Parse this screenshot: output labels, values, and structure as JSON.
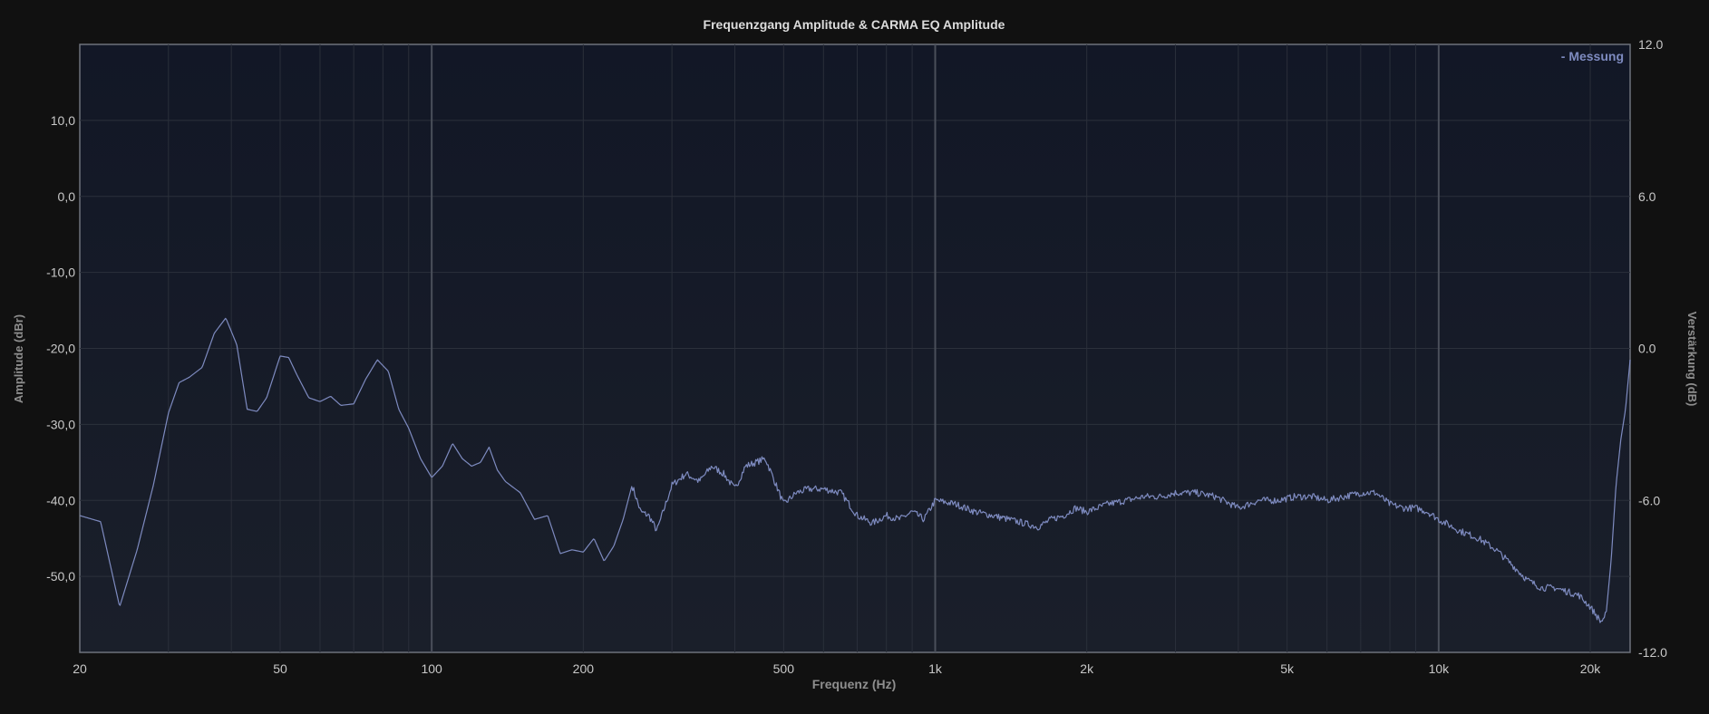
{
  "chart_data": {
    "type": "line",
    "title": "Frequenzgang Amplitude & CARMA EQ Amplitude",
    "xlabel": "Frequenz (Hz)",
    "ylabel": "Amplitude (dBr)",
    "y2label": "Verstärkung (dB)",
    "xscale": "log",
    "xlim": [
      20,
      24000
    ],
    "ylim": [
      -60,
      20
    ],
    "y2lim": [
      -12,
      12
    ],
    "grid": true,
    "legend_position": "top-right",
    "x_ticks": [
      {
        "value": 20,
        "label": "20"
      },
      {
        "value": 50,
        "label": "50"
      },
      {
        "value": 100,
        "label": "100"
      },
      {
        "value": 200,
        "label": "200"
      },
      {
        "value": 500,
        "label": "500"
      },
      {
        "value": 1000,
        "label": "1k"
      },
      {
        "value": 2000,
        "label": "2k"
      },
      {
        "value": 5000,
        "label": "5k"
      },
      {
        "value": 10000,
        "label": "10k"
      },
      {
        "value": 20000,
        "label": "20k"
      }
    ],
    "y_ticks": [
      {
        "value": 10,
        "label": "10,0"
      },
      {
        "value": 0,
        "label": "0,0"
      },
      {
        "value": -10,
        "label": "-10,0"
      },
      {
        "value": -20,
        "label": "-20,0"
      },
      {
        "value": -30,
        "label": "-30,0"
      },
      {
        "value": -40,
        "label": "-40,0"
      },
      {
        "value": -50,
        "label": "-50,0"
      }
    ],
    "y2_ticks": [
      {
        "value": 12,
        "label": "12.0"
      },
      {
        "value": 6,
        "label": "6.0"
      },
      {
        "value": 0,
        "label": "0.0"
      },
      {
        "value": -6,
        "label": "-6.0"
      },
      {
        "value": -12,
        "label": "-12.0"
      }
    ],
    "series": [
      {
        "name": "Messung",
        "legend_label": "- Messung",
        "color": "#7e8bc0",
        "x": [
          20,
          22,
          24,
          26,
          28,
          30,
          31.5,
          33,
          35,
          37,
          39,
          41,
          43,
          45,
          47,
          50,
          52,
          54,
          57,
          60,
          63,
          66,
          70,
          74,
          78,
          82,
          86,
          90,
          95,
          100,
          105,
          110,
          115,
          120,
          125,
          130,
          135,
          140,
          150,
          160,
          170,
          180,
          190,
          200,
          210,
          220,
          230,
          240,
          250,
          260,
          270,
          280,
          300,
          320,
          340,
          360,
          380,
          400,
          420,
          440,
          460,
          480,
          500,
          530,
          560,
          600,
          650,
          700,
          750,
          800,
          850,
          900,
          950,
          1000,
          1100,
          1200,
          1300,
          1400,
          1500,
          1600,
          1700,
          1800,
          1900,
          2000,
          2200,
          2400,
          2600,
          2800,
          3000,
          3300,
          3600,
          4000,
          4400,
          4800,
          5200,
          5600,
          6000,
          6500,
          7000,
          7500,
          8000,
          8500,
          9000,
          9500,
          10000,
          11000,
          12000,
          13000,
          14000,
          15000,
          16000,
          17000,
          18000,
          19000,
          20000,
          21000,
          21500,
          22000,
          22500,
          23000,
          23500,
          24000
        ],
        "values": [
          -42.0,
          -42.8,
          -54.0,
          -46.5,
          -38.0,
          -28.5,
          -24.5,
          -23.8,
          -22.5,
          -18.0,
          -16.0,
          -19.5,
          -28.0,
          -28.3,
          -26.5,
          -21.0,
          -21.2,
          -23.5,
          -26.5,
          -27.0,
          -26.3,
          -27.5,
          -27.3,
          -24.0,
          -21.5,
          -23.0,
          -28.0,
          -30.5,
          -34.5,
          -37.0,
          -35.5,
          -32.5,
          -34.5,
          -35.5,
          -35.0,
          -33.0,
          -36.0,
          -37.5,
          -39.0,
          -42.5,
          -42.0,
          -47.0,
          -46.5,
          -46.8,
          -45.0,
          -48.0,
          -46.0,
          -42.5,
          -38.0,
          -41.5,
          -42.0,
          -44.0,
          -38.0,
          -36.5,
          -37.5,
          -35.5,
          -36.5,
          -38.5,
          -35.5,
          -35.0,
          -34.5,
          -37.5,
          -40.5,
          -39.0,
          -38.5,
          -38.5,
          -39.0,
          -42.0,
          -43.0,
          -42.0,
          -42.5,
          -41.5,
          -42.5,
          -40.0,
          -40.5,
          -41.5,
          -42.0,
          -42.5,
          -43.0,
          -43.5,
          -42.5,
          -42.0,
          -41.0,
          -41.5,
          -40.5,
          -40.0,
          -39.5,
          -39.5,
          -39.0,
          -39.0,
          -39.5,
          -41.0,
          -40.0,
          -40.0,
          -39.5,
          -39.5,
          -40.0,
          -39.5,
          -39.0,
          -39.0,
          -40.5,
          -41.0,
          -41.0,
          -41.5,
          -42.5,
          -44.0,
          -45.0,
          -46.5,
          -48.5,
          -50.5,
          -51.5,
          -51.5,
          -52.0,
          -52.5,
          -54.0,
          -56.0,
          -55.0,
          -48.0,
          -38.0,
          -32.0,
          -28.0,
          -21.5
        ]
      }
    ]
  }
}
